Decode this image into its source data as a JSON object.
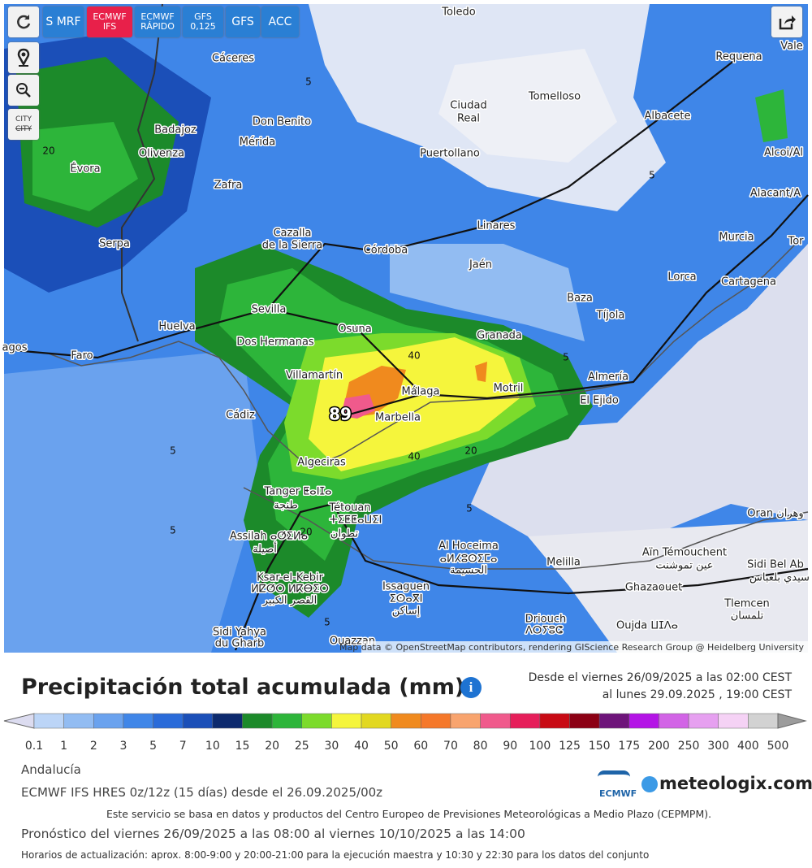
{
  "toolbar": {
    "buttons": [
      [
        "S MRF"
      ],
      [
        "ECMWF",
        "IFS"
      ],
      [
        "ECMWF",
        "RÁPIDO"
      ],
      [
        "GFS",
        "0,125"
      ],
      [
        "GFS"
      ],
      [
        "ACC"
      ]
    ],
    "city": [
      "CITY",
      "CITY"
    ]
  },
  "map": {
    "labels": [
      "Toledo",
      "Cáceres",
      "Requena",
      "Vale",
      "Ciudad",
      "Real",
      "Tomelloso",
      "Albacete",
      "Badajoz",
      "Don Benito",
      "Mérida",
      "Olivenza",
      "Puertollano",
      "Alcoi/Al",
      "Évora",
      "Zafra",
      "Alacant/A",
      "Linares",
      "Serpa",
      "Cazalla",
      "de la Sierra",
      "Córdoba",
      "Murcia",
      "Tor",
      "Jaén",
      "Lorca",
      "Cartagena",
      "Baza",
      "Tíjola",
      "Sevilla",
      "Huelva",
      "Osuna",
      "Granada",
      "Dos Hermanas",
      "agos",
      "Faro",
      "Almería",
      "Villamartín",
      "Motril",
      "Málaga",
      "El Ejido",
      "Cádiz",
      "Marbella",
      "Algeciras",
      "Tanger ⵟⴰⵏⵊⴰ",
      "طنجة",
      "Tétouan",
      "ⵜⵉⵟⵟⴰⵡⵉⵏ",
      "تطوان",
      "Assilah ⴰⵚⵉⵍⴰ",
      "أصيلة",
      "Oran وهران",
      "Al Hoceima",
      "ⴰⵍⵃⵓⵙⵉⵎⴰ",
      "الحسيمة",
      "Aïn Témouchent",
      "عين تموشنت",
      "Melilla",
      "Sidi Bel Ab",
      "سيدي بلعباس",
      "Ksar-el-Kebir",
      "ⵍⵇⵚⵔ ⵍⴽⴱⵉⵔ",
      "القصر الكبير",
      "Issaguen",
      "ⵉⵙⴰⴳⵏ",
      "إساكن",
      "Ghazaouet",
      "Tlemcen",
      "تلمسان",
      "Driouch",
      "ⴷⵔⵢⵓⵛ",
      "Oujda ⵡⵊⴷⴰ",
      "Sidi Yahya",
      "du Gharb",
      "Ouazzan"
    ],
    "contours": [
      "5",
      "5",
      "5",
      "5",
      "5",
      "5",
      "5",
      "20",
      "20",
      "20",
      "40",
      "40",
      "89"
    ],
    "attribution": "Map data © OpenStreetMap contributors, rendering GIScience Research Group @ Heidelberg University"
  },
  "legend_panel": {
    "title": "Precipitación total acumulada (mm)",
    "info": "i",
    "period_from": "Desde el viernes 26/09/2025 a  las 02:00  CEST",
    "period_to": "al lunes 29.09.2025 ,  19:00  CEST",
    "labels": [
      "0.1",
      "1",
      "2",
      "3",
      "5",
      "7",
      "10",
      "15",
      "20",
      "25",
      "30",
      "40",
      "50",
      "60",
      "70",
      "80",
      "90",
      "100",
      "125",
      "150",
      "175",
      "200",
      "250",
      "300",
      "400",
      "500"
    ],
    "colors": [
      "#bcd5f7",
      "#92bcf2",
      "#6aa2ee",
      "#4086e8",
      "#2a6bd9",
      "#1b4fb8",
      "#0d2a6e",
      "#1c8a2a",
      "#2db53a",
      "#7cdb2c",
      "#f5f53c",
      "#e2d820",
      "#f08a1e",
      "#f5782a",
      "#f8a46e",
      "#f05a8c",
      "#e61e5a",
      "#c80a14",
      "#8c0014",
      "#6e147a",
      "#b414e6",
      "#d264e6",
      "#e6a0f0",
      "#f5d2f5",
      "#d2d2d2"
    ],
    "low_color": "#dcdcf0",
    "high_color": "#9c9c9c"
  },
  "footer": {
    "region": "Andalucía",
    "model": "ECMWF IFS HRES 0z/12z (15 días) desde el 26.09.2025/00z",
    "ecmwf_logo": "ECMWF",
    "brand": "meteologix.com",
    "notice": "Este servicio se basa en datos y productos del Centro Europeo de Previsiones Meteorológicas a Medio Plazo (CEPMPM).",
    "forecast": "Pronóstico del viernes 26/09/2025 a las 08:00 al viernes 10/10/2025 a las 14:00",
    "updates": "Horarios de actualización: aprox. 8:00-9:00 y 20:00-21:00 para la ejecución maestra y 10:30 y 22:30 para los datos del conjunto"
  }
}
